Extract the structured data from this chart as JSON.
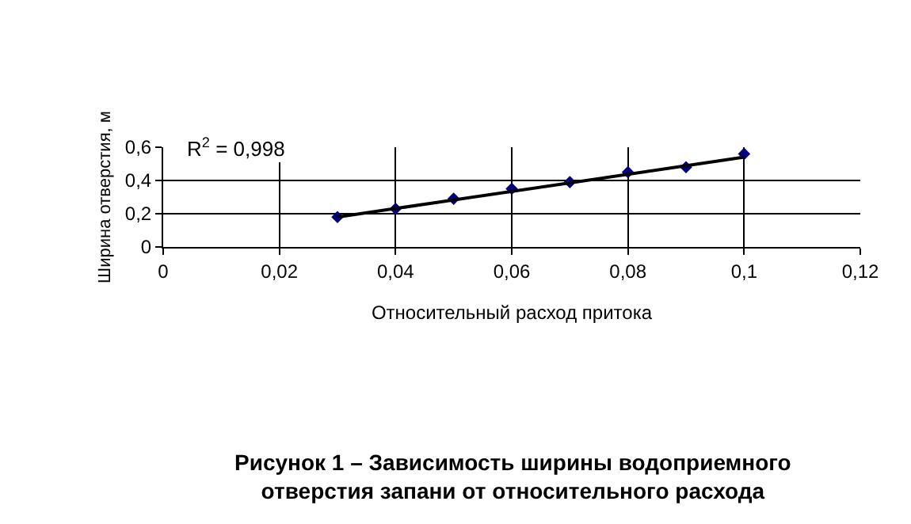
{
  "chart_data": {
    "type": "scatter",
    "xlabel": "Относительный расход притока",
    "ylabel": "Ширина отверстия, м",
    "x": [
      0.03,
      0.04,
      0.05,
      0.06,
      0.07,
      0.08,
      0.09,
      0.1
    ],
    "series": [
      {
        "color": "#000080",
        "marker": "diamond",
        "values": [
          0.18,
          0.23,
          0.29,
          0.35,
          0.39,
          0.45,
          0.48,
          0.56
        ]
      },
      {
        "type": "line",
        "color": "#000000",
        "x": [
          0.03,
          0.1
        ],
        "values": [
          0.18,
          0.54
        ]
      }
    ],
    "xlim": [
      0,
      0.12
    ],
    "xticks": [
      0,
      {
        "value": 0.02,
        "label": "0,02"
      },
      {
        "value": 0.04,
        "label": "0,04"
      },
      {
        "value": 0.06,
        "label": "0,06"
      },
      {
        "value": 0.08,
        "label": "0,08"
      },
      {
        "value": 0.1,
        "label": "0,1"
      },
      {
        "value": 0.12,
        "label": "0,12"
      }
    ],
    "ylim": [
      0,
      0.6
    ],
    "yticks": [
      0,
      {
        "value": 0.2,
        "label": "0,2"
      },
      {
        "value": 0.4,
        "label": "0,4"
      },
      {
        "value": 0.6,
        "label": "0,6"
      }
    ],
    "grid": true,
    "annotations": [
      "R$^{2}$ = 0,998",
      "Рисунок 1 – Зависимость ширины водоприемного отверстия запани от относительного расхода"
    ]
  }
}
